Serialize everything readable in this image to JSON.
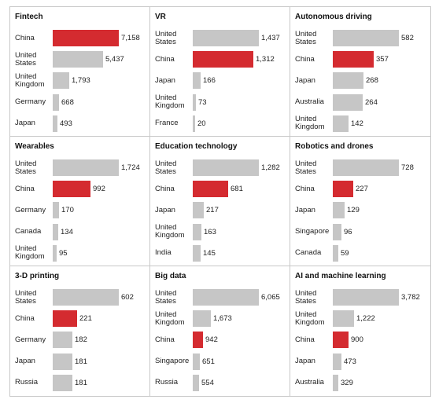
{
  "colors": {
    "highlight": "#d42b30",
    "default": "#c6c6c6"
  },
  "chart_data": [
    {
      "type": "bar",
      "title": "Fintech",
      "categories": [
        "China",
        "United States",
        "United Kingdom",
        "Germany",
        "Japan"
      ],
      "values": [
        7158,
        5437,
        1793,
        668,
        493
      ],
      "labels": [
        "7,158",
        "5,437",
        "1,793",
        "668",
        "493"
      ],
      "highlight": "China"
    },
    {
      "type": "bar",
      "title": "VR",
      "categories": [
        "United States",
        "China",
        "Japan",
        "United Kingdom",
        "France"
      ],
      "values": [
        1437,
        1312,
        166,
        73,
        20
      ],
      "labels": [
        "1,437",
        "1,312",
        "166",
        "73",
        "20"
      ],
      "highlight": "China"
    },
    {
      "type": "bar",
      "title": "Autonomous driving",
      "categories": [
        "United States",
        "China",
        "Japan",
        "Australia",
        "United Kingdom"
      ],
      "values": [
        582,
        357,
        268,
        264,
        142
      ],
      "labels": [
        "582",
        "357",
        "268",
        "264",
        "142"
      ],
      "highlight": "China"
    },
    {
      "type": "bar",
      "title": "Wearables",
      "categories": [
        "United States",
        "China",
        "Germany",
        "Canada",
        "United Kingdom"
      ],
      "values": [
        1724,
        992,
        170,
        134,
        95
      ],
      "labels": [
        "1,724",
        "992",
        "170",
        "134",
        "95"
      ],
      "highlight": "China"
    },
    {
      "type": "bar",
      "title": "Education technology",
      "categories": [
        "United States",
        "China",
        "Japan",
        "United Kingdom",
        "India"
      ],
      "values": [
        1282,
        681,
        217,
        163,
        145
      ],
      "labels": [
        "1,282",
        "681",
        "217",
        "163",
        "145"
      ],
      "highlight": "China"
    },
    {
      "type": "bar",
      "title": "Robotics and drones",
      "categories": [
        "United States",
        "China",
        "Japan",
        "Singapore",
        "Canada"
      ],
      "values": [
        728,
        227,
        129,
        96,
        59
      ],
      "labels": [
        "728",
        "227",
        "129",
        "96",
        "59"
      ],
      "highlight": "China"
    },
    {
      "type": "bar",
      "title": "3-D printing",
      "categories": [
        "United States",
        "China",
        "Germany",
        "Japan",
        "Russia"
      ],
      "values": [
        602,
        221,
        182,
        181,
        181
      ],
      "labels": [
        "602",
        "221",
        "182",
        "181",
        "181"
      ],
      "highlight": "China"
    },
    {
      "type": "bar",
      "title": "Big data",
      "categories": [
        "United States",
        "United Kingdom",
        "China",
        "Singapore",
        "Russia"
      ],
      "values": [
        6065,
        1673,
        942,
        651,
        554
      ],
      "labels": [
        "6,065",
        "1,673",
        "942",
        "651",
        "554"
      ],
      "highlight": "China"
    },
    {
      "type": "bar",
      "title": "AI and machine learning",
      "categories": [
        "United States",
        "United Kingdom",
        "China",
        "Japan",
        "Australia"
      ],
      "values": [
        3782,
        1222,
        900,
        473,
        329
      ],
      "labels": [
        "3,782",
        "1,222",
        "900",
        "473",
        "329"
      ],
      "highlight": "China"
    }
  ]
}
